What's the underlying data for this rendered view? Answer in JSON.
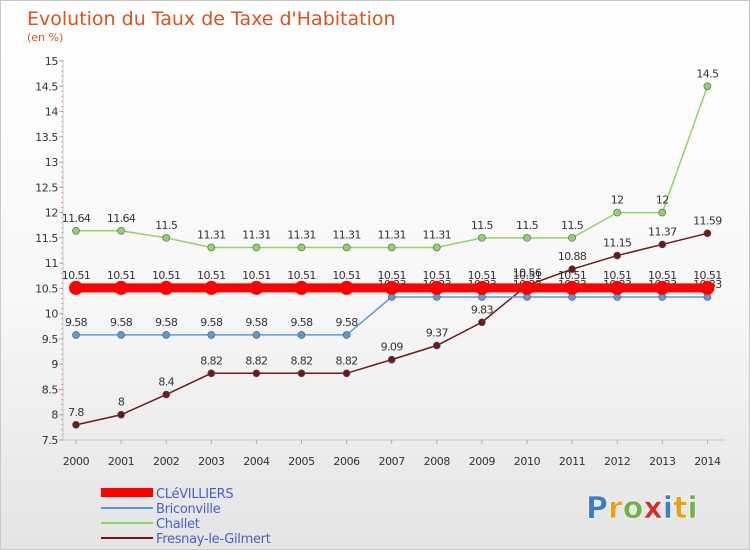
{
  "chart_data": {
    "type": "line",
    "title": "Evolution du Taux de Taxe d'Habitation",
    "unit_label": "(en %)",
    "x": [
      "2000",
      "2001",
      "2002",
      "2003",
      "2004",
      "2005",
      "2006",
      "2007",
      "2008",
      "2009",
      "2010",
      "2011",
      "2012",
      "2013",
      "2014"
    ],
    "ylim": [
      7.5,
      15
    ],
    "yticks": [
      "7.5",
      "8",
      "8.5",
      "9",
      "9.5",
      "10",
      "10.5",
      "11",
      "11.5",
      "12",
      "12.5",
      "13",
      "13.5",
      "14",
      "14.5",
      "15"
    ],
    "grid": false,
    "legend_position": "bottom-left",
    "series": [
      {
        "name": "CLéVILLIERS",
        "color": "#ff0000",
        "values": [
          10.51,
          10.51,
          10.51,
          10.51,
          10.51,
          10.51,
          10.51,
          10.51,
          10.51,
          10.51,
          10.51,
          10.51,
          10.51,
          10.51,
          10.51
        ],
        "labels": [
          "10.51",
          "10.51",
          "10.51",
          "10.51",
          "10.51",
          "10.51",
          "10.51",
          "10.51",
          "10.51",
          "10.51",
          "10.51",
          "10.51",
          "10.51",
          "10.51",
          "10.51"
        ]
      },
      {
        "name": "Briconville",
        "color": "#5b9bd5",
        "values": [
          9.58,
          9.58,
          9.58,
          9.58,
          9.58,
          9.58,
          9.58,
          10.33,
          10.33,
          10.33,
          10.33,
          10.33,
          10.33,
          10.33,
          10.33
        ],
        "labels": [
          "9.58",
          "9.58",
          "9.58",
          "9.58",
          "9.58",
          "9.58",
          "9.58",
          "10.33",
          "10.33",
          "10.33",
          "10.33",
          "10.33",
          "10.33",
          "10.33",
          "10.33"
        ]
      },
      {
        "name": "Challet",
        "color": "#8fd468",
        "values": [
          11.64,
          11.64,
          11.5,
          11.31,
          11.31,
          11.31,
          11.31,
          11.31,
          11.31,
          11.5,
          11.5,
          11.5,
          12,
          12,
          14.5
        ],
        "labels": [
          "11.64",
          "11.64",
          "11.5",
          "11.31",
          "11.31",
          "11.31",
          "11.31",
          "11.31",
          "11.31",
          "11.5",
          "11.5",
          "11.5",
          "12",
          "12",
          "14.5"
        ]
      },
      {
        "name": "Fresnay-le-Gilmert",
        "color": "#6b1a1a",
        "values": [
          7.8,
          8,
          8.4,
          8.82,
          8.82,
          8.82,
          8.82,
          9.09,
          9.37,
          9.83,
          10.56,
          10.88,
          11.15,
          11.37,
          11.59
        ],
        "labels": [
          "7.8",
          "8",
          "8.4",
          "8.82",
          "8.82",
          "8.82",
          "8.82",
          "9.09",
          "9.37",
          "9.83",
          "10.56",
          "10.88",
          "11.15",
          "11.37",
          "11.59"
        ]
      }
    ]
  },
  "logo": {
    "letters": [
      "P",
      "r",
      "o",
      "x",
      "i",
      "t",
      "i"
    ],
    "colors": [
      "#3b7fc4",
      "#e8a21a",
      "#6bb34a",
      "#d62b2b",
      "#3b7fc4",
      "#e8a21a",
      "#6bb34a"
    ]
  }
}
